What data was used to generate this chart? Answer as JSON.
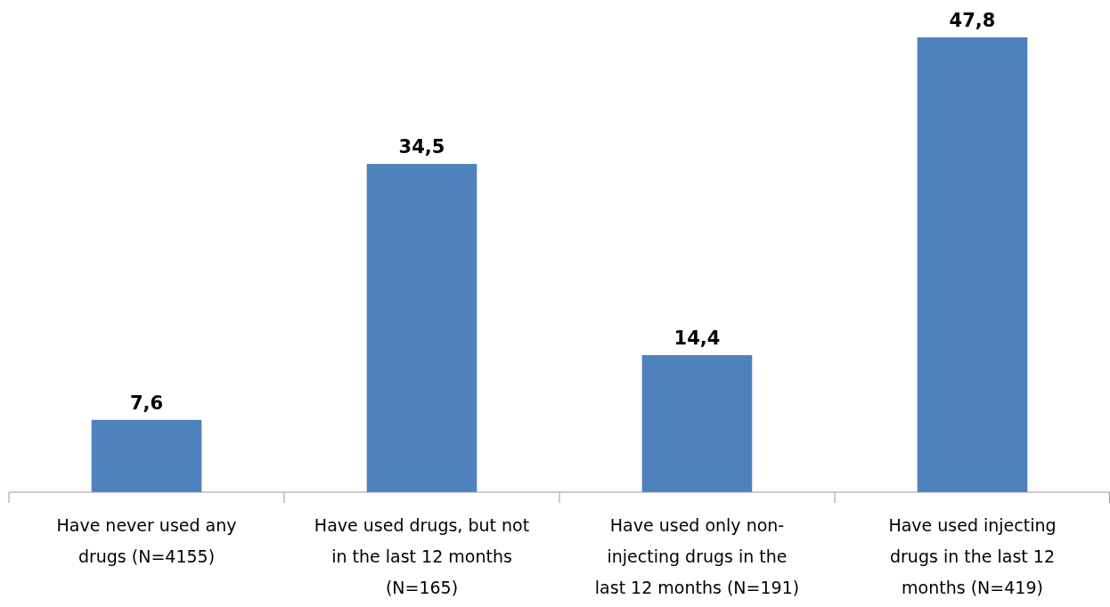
{
  "chart_data": {
    "type": "bar",
    "categories": [
      "Have never used any drugs (N=4155)",
      "Have used drugs, but not in the last 12 months (N=165)",
      "Have used only non-injecting drugs in the last 12 months (N=191)",
      "Have used injecting drugs in the last 12 months (N=419)"
    ],
    "values": [
      7.6,
      34.5,
      14.4,
      47.8
    ],
    "value_labels": [
      "7,6",
      "34,5",
      "14,4",
      "47,8"
    ],
    "color": "#4f81bd"
  }
}
